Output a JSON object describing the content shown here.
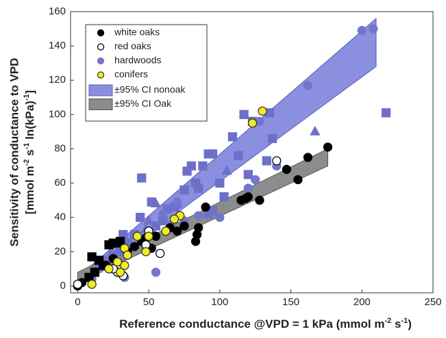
{
  "chart_data": {
    "type": "scatter",
    "x_label": [
      "Reference conductance @VPD = 1 kPa (mmol m",
      "-2",
      " s",
      "-1",
      ")"
    ],
    "y_label": [
      "Sensitivity of conductance to VPD",
      "[mmol m",
      "-2",
      " s",
      "-1",
      " ln(kPa)",
      "-1",
      "]"
    ],
    "xlim": [
      -5,
      250
    ],
    "ylim": [
      -4,
      160
    ],
    "xticks": [
      0,
      50,
      100,
      150,
      200,
      250
    ],
    "yticks": [
      0,
      20,
      40,
      60,
      80,
      100,
      120,
      140,
      160
    ],
    "bands": [
      {
        "name": "±95% CI nonoak",
        "color": "#8b8fe0",
        "edge": "#5a5db8",
        "x": [
          0,
          210
        ],
        "lower": [
          0,
          128
        ],
        "upper": [
          5,
          156
        ]
      },
      {
        "name": "±95% CI Oak",
        "color": "#8c8c8c",
        "edge": "#555555",
        "x": [
          0,
          176
        ],
        "lower": [
          2,
          70
        ],
        "upper": [
          8,
          80
        ]
      }
    ],
    "series": [
      {
        "name": "white oaks",
        "color": "#000000",
        "edge": "#000000",
        "marker": "circle",
        "x": [
          0,
          3,
          20,
          25,
          30,
          40,
          45,
          48,
          55,
          65,
          70,
          75,
          83,
          84,
          85,
          90,
          115,
          118,
          120,
          128,
          147,
          155,
          162,
          176,
          52,
          35
        ],
        "y": [
          0,
          2,
          12,
          16,
          25,
          23,
          26,
          28,
          29,
          34,
          32,
          35,
          26,
          30,
          34,
          46,
          50,
          51,
          52,
          50,
          68,
          62,
          75,
          81,
          22,
          20
        ]
      },
      {
        "name": "red oaks",
        "color": "#ffffff",
        "edge": "#000000",
        "marker": "circle",
        "x": [
          0,
          28,
          32,
          50,
          58,
          140,
          25,
          48
        ],
        "y": [
          1,
          8,
          6,
          32,
          19,
          73,
          10,
          24
        ]
      },
      {
        "name": "hardwoods",
        "color": "#7376cc",
        "edge": "#7376cc",
        "marker": "circle",
        "x": [
          200,
          208,
          162,
          128,
          140,
          120,
          125,
          85,
          70,
          60,
          55,
          33,
          30,
          22,
          15,
          10,
          45,
          53,
          65,
          100,
          75
        ],
        "y": [
          149,
          150,
          117,
          96,
          70,
          57,
          62,
          41,
          49,
          42,
          8,
          5,
          14,
          16,
          10,
          4,
          27,
          30,
          36,
          40,
          38
        ]
      },
      {
        "name": "conifers",
        "color": "#f2ee1c",
        "edge": "#333333",
        "marker": "circle",
        "x": [
          130,
          123,
          72,
          68,
          50,
          42,
          33,
          35,
          33,
          28,
          22,
          48,
          62,
          10,
          30
        ],
        "y": [
          102,
          95,
          41,
          39,
          29,
          29,
          22,
          18,
          12,
          14,
          10,
          20,
          32,
          1,
          8
        ]
      },
      {
        "color": "#000000",
        "edge": "#000000",
        "marker": "square",
        "x": [
          10,
          15,
          22,
          25,
          30,
          18,
          12,
          8
        ],
        "y": [
          17,
          15,
          24,
          25,
          26,
          12,
          8,
          5
        ]
      },
      {
        "color": "#6d70c8",
        "edge": "#6d70c8",
        "marker": "square",
        "x": [
          217,
          135,
          117,
          123,
          137,
          133,
          109,
          113,
          120,
          100,
          95,
          92,
          88,
          85,
          83,
          80,
          77,
          75,
          45,
          52,
          63,
          68,
          60,
          55,
          44,
          40,
          35,
          32,
          30,
          25,
          20,
          15,
          95,
          92,
          103
        ],
        "y": [
          101,
          101,
          100,
          96,
          86,
          73,
          87,
          76,
          65,
          60,
          77,
          77,
          70,
          57,
          60,
          70,
          67,
          56,
          63,
          49,
          45,
          46,
          38,
          35,
          40,
          30,
          25,
          30,
          20,
          18,
          15,
          12,
          44,
          42,
          52
        ]
      },
      {
        "color": "#6d70c8",
        "edge": "#6d70c8",
        "marker": "triangle",
        "x": [
          167,
          105,
          55,
          50,
          48,
          70
        ],
        "y": [
          90,
          67,
          48,
          38,
          33,
          48
        ]
      }
    ]
  }
}
